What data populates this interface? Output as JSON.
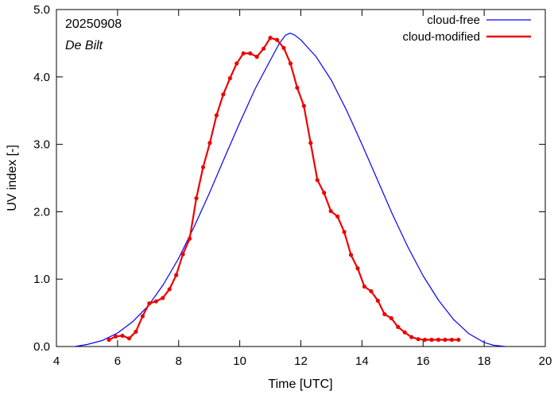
{
  "chart_data": {
    "type": "line",
    "date_label": "20250908",
    "location_label": "De Bilt",
    "xlabel": "Time  [UTC]",
    "ylabel": "UV index  [-]",
    "xlim": [
      4,
      20
    ],
    "ylim": [
      0,
      5
    ],
    "xticks": [
      4,
      6,
      8,
      10,
      12,
      14,
      16,
      18,
      20
    ],
    "yticks": [
      "0.0",
      "1.0",
      "2.0",
      "3.0",
      "4.0",
      "5.0"
    ],
    "legend_position": "top-right",
    "grid": false,
    "series": [
      {
        "name": "cloud-free",
        "color": "#0000ff",
        "style": "line",
        "x": [
          4.6,
          5.0,
          5.5,
          6.0,
          6.5,
          7.0,
          7.5,
          8.0,
          8.5,
          9.0,
          9.5,
          10.0,
          10.5,
          11.0,
          11.3,
          11.5,
          11.65,
          11.8,
          12.0,
          12.5,
          13.0,
          13.5,
          14.0,
          14.5,
          15.0,
          15.5,
          16.0,
          16.5,
          17.0,
          17.5,
          18.0,
          18.3,
          18.7
        ],
        "y": [
          0.0,
          0.03,
          0.09,
          0.2,
          0.37,
          0.6,
          0.92,
          1.31,
          1.77,
          2.27,
          2.8,
          3.32,
          3.82,
          4.25,
          4.5,
          4.62,
          4.65,
          4.62,
          4.55,
          4.3,
          3.95,
          3.5,
          3.0,
          2.48,
          1.96,
          1.48,
          1.05,
          0.69,
          0.4,
          0.19,
          0.06,
          0.02,
          0.0
        ]
      },
      {
        "name": "cloud-modified",
        "color": "#ee0000",
        "style": "line+points",
        "x": [
          5.72,
          5.94,
          6.16,
          6.38,
          6.6,
          6.82,
          7.04,
          7.26,
          7.48,
          7.7,
          7.92,
          8.14,
          8.36,
          8.58,
          8.8,
          9.02,
          9.24,
          9.46,
          9.68,
          9.9,
          10.12,
          10.34,
          10.56,
          10.78,
          11.0,
          11.22,
          11.44,
          11.66,
          11.88,
          12.1,
          12.32,
          12.54,
          12.76,
          12.98,
          13.2,
          13.42,
          13.64,
          13.86,
          14.08,
          14.3,
          14.52,
          14.74,
          14.96,
          15.18,
          15.4,
          15.62,
          15.84,
          16.06,
          16.28,
          16.5,
          16.72,
          16.94,
          17.16
        ],
        "y": [
          0.1,
          0.15,
          0.16,
          0.12,
          0.22,
          0.45,
          0.64,
          0.67,
          0.72,
          0.85,
          1.06,
          1.37,
          1.6,
          2.2,
          2.66,
          3.02,
          3.43,
          3.74,
          3.98,
          4.2,
          4.35,
          4.35,
          4.3,
          4.42,
          4.58,
          4.55,
          4.43,
          4.2,
          3.84,
          3.57,
          3.02,
          2.47,
          2.28,
          2.01,
          1.93,
          1.7,
          1.36,
          1.16,
          0.89,
          0.82,
          0.68,
          0.48,
          0.42,
          0.29,
          0.21,
          0.14,
          0.11,
          0.1,
          0.1,
          0.1,
          0.1,
          0.1,
          0.1
        ]
      }
    ]
  }
}
